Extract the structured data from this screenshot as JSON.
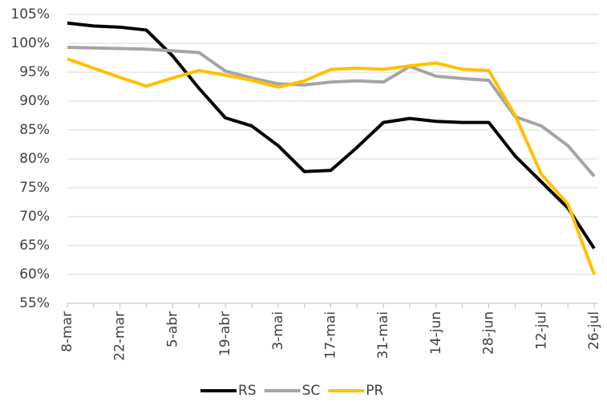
{
  "chart_data": {
    "type": "line",
    "categories": [
      "8-mar",
      null,
      "22-mar",
      null,
      "5-abr",
      null,
      "19-abr",
      null,
      "3-mai",
      null,
      "17-mai",
      null,
      "31-mai",
      null,
      "14-jun",
      null,
      "28-jun",
      null,
      "12-jul",
      null,
      "26-jul"
    ],
    "series": [
      {
        "name": "RS",
        "color": "#000000",
        "values": [
          103.5,
          103.0,
          102.8,
          102.3,
          97.8,
          92.2,
          87.1,
          85.7,
          82.3,
          77.8,
          78.0,
          82.0,
          86.3,
          87.0,
          86.5,
          86.3,
          86.3,
          80.5,
          76.0,
          71.5,
          64.5
        ]
      },
      {
        "name": "SC",
        "color": "#a5a5a5",
        "values": [
          99.3,
          99.2,
          99.1,
          99.0,
          98.7,
          98.4,
          95.2,
          94.0,
          93.0,
          92.8,
          93.3,
          93.5,
          93.3,
          96.0,
          94.3,
          93.9,
          93.6,
          87.3,
          85.7,
          82.3,
          77.0
        ]
      },
      {
        "name": "PR",
        "color": "#ffc000",
        "values": [
          97.3,
          95.7,
          94.1,
          92.6,
          94.0,
          95.3,
          94.5,
          93.6,
          92.4,
          93.5,
          95.5,
          95.7,
          95.5,
          96.1,
          96.6,
          95.5,
          95.3,
          87.5,
          77.3,
          72.2,
          60.0
        ]
      }
    ],
    "ylim": [
      55,
      105
    ],
    "yticks": [
      {
        "value": 55,
        "label": "55%"
      },
      {
        "value": 60,
        "label": "60%"
      },
      {
        "value": 65,
        "label": "65%"
      },
      {
        "value": 70,
        "label": "70%"
      },
      {
        "value": 75,
        "label": "75%"
      },
      {
        "value": 80,
        "label": "80%"
      },
      {
        "value": 85,
        "label": "85%"
      },
      {
        "value": 90,
        "label": "90%"
      },
      {
        "value": 95,
        "label": "95%"
      },
      {
        "value": 100,
        "label": "100%"
      },
      {
        "value": 105,
        "label": "105%"
      }
    ],
    "grid": true,
    "legend": "bottom"
  }
}
